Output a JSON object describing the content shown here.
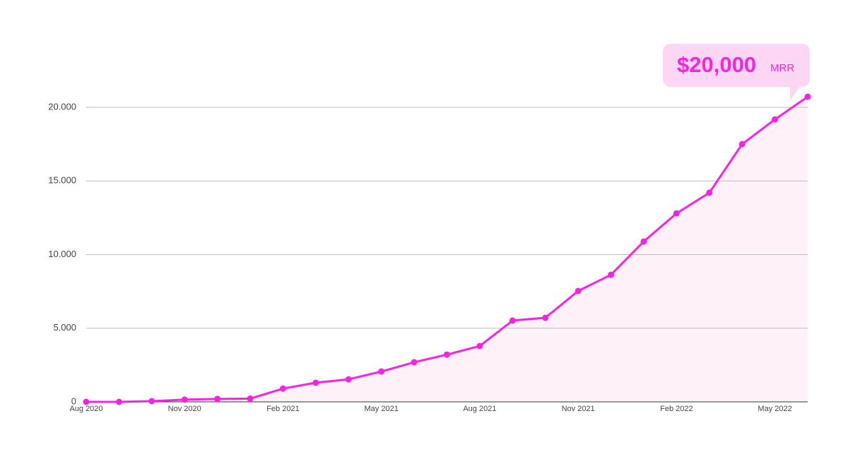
{
  "chart_data": {
    "type": "line",
    "categories": [
      "Aug 2020",
      null,
      null,
      "Nov 2020",
      null,
      null,
      "Feb 2021",
      null,
      null,
      "May 2021",
      null,
      null,
      "Aug 2021",
      null,
      null,
      "Nov 2021",
      null,
      null,
      "Feb 2022",
      null,
      null,
      "May 2022",
      null
    ],
    "series": [
      {
        "color": "#f524e0",
        "fill": "#fff1f8",
        "values": [
          0,
          0,
          50,
          150,
          200,
          220,
          900,
          1300,
          1530,
          2060,
          2690,
          3210,
          3790,
          5520,
          5710,
          7530,
          8630,
          10890,
          12800,
          14200,
          17500,
          19180,
          20720
        ]
      }
    ],
    "ylim": [
      0,
      20000
    ],
    "yticks": [
      0,
      {
        "value": 5000,
        "label": "5.000"
      },
      {
        "value": 10000,
        "label": "10.000"
      },
      {
        "value": 15000,
        "label": "15.000"
      },
      {
        "value": 20000,
        "label": "20.000"
      }
    ],
    "grid": true,
    "annotation": {
      "value": "$20,000",
      "unit": "MRR"
    }
  }
}
